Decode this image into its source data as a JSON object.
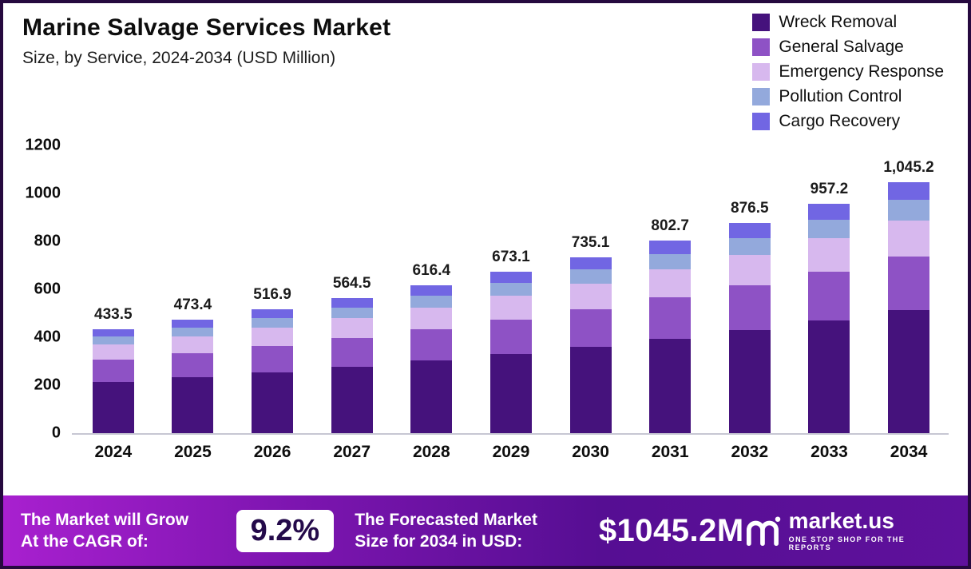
{
  "header": {
    "title": "Marine Salvage Services Market",
    "subtitle": "Size, by Service, 2024-2034 (USD Million)"
  },
  "chart_data": {
    "type": "bar",
    "stacked": true,
    "title": "Marine Salvage Services Market Size, by Service, 2024-2034 (USD Million)",
    "xlabel": "",
    "ylabel": "USD Million",
    "ylim": [
      0,
      1200
    ],
    "yticks": [
      0,
      200,
      400,
      600,
      800,
      1000,
      1200
    ],
    "grid": false,
    "legend_position": "top-right",
    "categories": [
      "2024",
      "2025",
      "2026",
      "2027",
      "2028",
      "2029",
      "2030",
      "2031",
      "2032",
      "2033",
      "2034"
    ],
    "totals": [
      433.5,
      473.4,
      516.9,
      564.5,
      616.4,
      673.1,
      735.1,
      802.7,
      876.5,
      957.2,
      1045.2
    ],
    "total_labels": [
      "433.5",
      "473.4",
      "516.9",
      "564.5",
      "616.4",
      "673.1",
      "735.1",
      "802.7",
      "876.5",
      "957.2",
      "1,045.2"
    ],
    "series": [
      {
        "name": "Wreck Removal",
        "color": "#45127c",
        "values": [
          212.4,
          232.0,
          253.3,
          276.6,
          302.0,
          329.8,
          360.2,
          393.3,
          429.5,
          469.0,
          512.1
        ]
      },
      {
        "name": "General Salvage",
        "color": "#8e52c5",
        "values": [
          93.2,
          101.8,
          111.1,
          121.4,
          132.5,
          144.7,
          158.0,
          172.6,
          188.4,
          205.8,
          224.7
        ]
      },
      {
        "name": "Emergency Response",
        "color": "#d7b8ee",
        "values": [
          62.9,
          68.6,
          74.9,
          81.9,
          89.4,
          97.6,
          106.6,
          116.4,
          127.1,
          138.8,
          151.6
        ]
      },
      {
        "name": "Pollution Control",
        "color": "#93a9dc",
        "values": [
          34.7,
          37.9,
          41.4,
          45.2,
          49.3,
          53.8,
          58.8,
          64.2,
          70.1,
          76.6,
          83.6
        ]
      },
      {
        "name": "Cargo Recovery",
        "color": "#7166e3",
        "values": [
          30.3,
          33.1,
          36.2,
          39.5,
          43.1,
          47.1,
          51.5,
          56.2,
          61.4,
          67.0,
          73.2
        ]
      }
    ]
  },
  "banner": {
    "cagr_label_line1": "The Market will Grow",
    "cagr_label_line2": "At the CAGR of:",
    "cagr_value": "9.2%",
    "forecast_label_line1": "The Forecasted Market",
    "forecast_label_line2": "Size for 2034 in USD:",
    "forecast_value": "$1045.2M",
    "brand_name": "market.us",
    "brand_tagline": "ONE STOP SHOP FOR THE REPORTS"
  }
}
